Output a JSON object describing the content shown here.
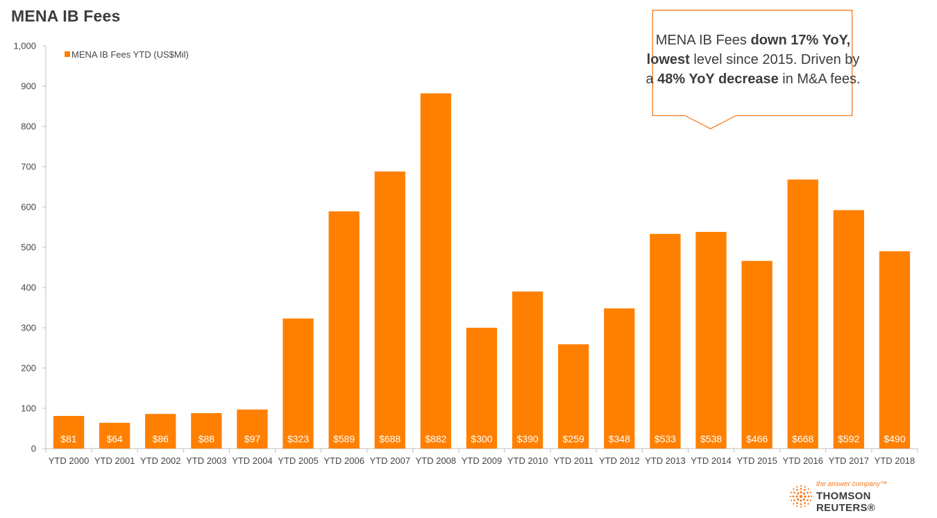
{
  "title": "MENA IB Fees",
  "callout": {
    "parts": [
      {
        "text": "MENA IB Fees ",
        "bold": false
      },
      {
        "text": "down 17% YoY,",
        "bold": true
      },
      {
        "text": " ",
        "bold": false
      },
      {
        "text": "lowest",
        "bold": true
      },
      {
        "text": " level since 2015. Driven by a ",
        "bold": false
      },
      {
        "text": "48% YoY decrease",
        "bold": true
      },
      {
        "text": " in M&A fees.",
        "bold": false
      }
    ]
  },
  "logo": {
    "tagline": "the answer company™",
    "name": "THOMSON REUTERS®"
  },
  "colors": {
    "bar": "#ff8000",
    "callout_border": "#f47b20",
    "text": "#444444"
  },
  "chart_data": {
    "type": "bar",
    "title": "MENA IB Fees",
    "xlabel": "",
    "ylabel": "",
    "ylim": [
      0,
      1000
    ],
    "yticks": [
      0,
      100,
      200,
      300,
      400,
      500,
      600,
      700,
      800,
      900,
      1000
    ],
    "ytick_labels": [
      "0",
      "100",
      "200",
      "300",
      "400",
      "500",
      "600",
      "700",
      "800",
      "900",
      "1,000"
    ],
    "grid": false,
    "legend_position": "top-left",
    "categories": [
      "YTD 2000",
      "YTD 2001",
      "YTD 2002",
      "YTD 2003",
      "YTD 2004",
      "YTD 2005",
      "YTD 2006",
      "YTD 2007",
      "YTD 2008",
      "YTD 2009",
      "YTD 2010",
      "YTD 2011",
      "YTD 2012",
      "YTD 2013",
      "YTD 2014",
      "YTD 2015",
      "YTD 2016",
      "YTD 2017",
      "YTD 2018"
    ],
    "series": [
      {
        "name": "MENA IB Fees YTD (US$Mil)",
        "values": [
          81,
          64,
          86,
          88,
          97,
          323,
          589,
          688,
          882,
          300,
          390,
          259,
          348,
          533,
          538,
          466,
          668,
          592,
          490
        ],
        "data_labels": [
          "$81",
          "$64",
          "$86",
          "$88",
          "$97",
          "$323",
          "$589",
          "$688",
          "$882",
          "$300",
          "$390",
          "$259",
          "$348",
          "$533",
          "$538",
          "$466",
          "$668",
          "$592",
          "$490"
        ]
      }
    ]
  }
}
